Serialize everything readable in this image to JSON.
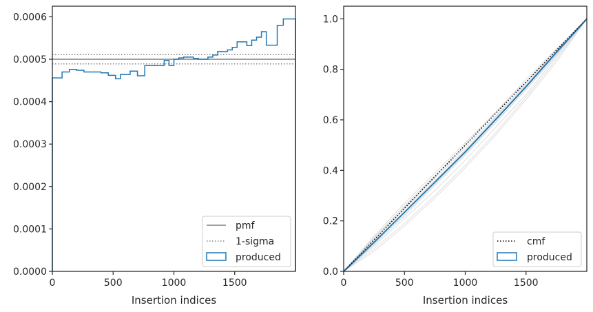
{
  "chart_data": [
    {
      "type": "step",
      "xlabel": "Insertion indices",
      "ylabel": "",
      "xlim": [
        0,
        2000
      ],
      "ylim": [
        0,
        0.000625
      ],
      "xticks": [
        0,
        500,
        1000,
        1500
      ],
      "xtick_labels": [
        "0",
        "500",
        "1000",
        "1500"
      ],
      "yticks": [
        0,
        0.0001,
        0.0002,
        0.0003,
        0.0004,
        0.0005,
        0.0006
      ],
      "ytick_labels": [
        "0.0000",
        "0.0001",
        "0.0002",
        "0.0003",
        "0.0004",
        "0.0005",
        "0.0006"
      ],
      "grid": false,
      "legend_position": "lower-right",
      "reference_lines": {
        "pmf": 0.0005,
        "sigma_upper": 0.000511,
        "sigma_lower": 0.000489
      },
      "series": [
        {
          "name": "produced",
          "color": "#1f77b4",
          "bin_edges": [
            0,
            80,
            140,
            200,
            260,
            280,
            340,
            400,
            460,
            520,
            560,
            600,
            640,
            700,
            760,
            820,
            880,
            920,
            960,
            1000,
            1040,
            1080,
            1120,
            1160,
            1200,
            1240,
            1280,
            1320,
            1360,
            1400,
            1440,
            1480,
            1520,
            1560,
            1600,
            1640,
            1680,
            1720,
            1760,
            1800,
            1850,
            1900,
            1950,
            2000
          ],
          "values": [
            0.000456,
            0.00047,
            0.000476,
            0.000474,
            0.00047,
            0.00047,
            0.00047,
            0.000468,
            0.000462,
            0.000454,
            0.000464,
            0.000464,
            0.000472,
            0.000461,
            0.000485,
            0.000485,
            0.000485,
            0.000497,
            0.000485,
            0.0005,
            0.000503,
            0.000505,
            0.000505,
            0.000502,
            0.0005,
            0.0005,
            0.000505,
            0.00051,
            0.000518,
            0.000518,
            0.000522,
            0.000528,
            0.000541,
            0.000541,
            0.000532,
            0.000545,
            0.000552,
            0.000565,
            0.000533,
            0.000533,
            0.00058,
            0.000595,
            0.000595
          ]
        }
      ],
      "legend": [
        {
          "label": "pmf",
          "style": "solid",
          "color": "#808080"
        },
        {
          "label": "1-sigma",
          "style": "dotted",
          "color": "#808080"
        },
        {
          "label": "produced",
          "style": "patch",
          "color": "#1f77b4"
        }
      ]
    },
    {
      "type": "line",
      "xlabel": "Insertion indices",
      "ylabel": "",
      "xlim": [
        0,
        2000
      ],
      "ylim": [
        0,
        1.05
      ],
      "xticks": [
        0,
        500,
        1000,
        1500
      ],
      "xtick_labels": [
        "0",
        "500",
        "1000",
        "1500"
      ],
      "yticks": [
        0,
        0.2,
        0.4,
        0.6,
        0.8,
        1.0
      ],
      "ytick_labels": [
        "0.0",
        "0.2",
        "0.4",
        "0.6",
        "0.8",
        "1.0"
      ],
      "grid": false,
      "legend_position": "lower-right",
      "series": [
        {
          "name": "cmf",
          "style": "dotted",
          "color": "#000000",
          "x": [
            0,
            2000
          ],
          "y": [
            0,
            1.0
          ]
        },
        {
          "name": "produced",
          "color": "#1f77b4",
          "x": [
            0,
            250,
            500,
            750,
            1000,
            1250,
            1500,
            1750,
            2000
          ],
          "y": [
            0,
            0.115,
            0.234,
            0.353,
            0.473,
            0.601,
            0.731,
            0.867,
            1.0
          ]
        }
      ],
      "background_curves": [
        {
          "x": [
            0,
            250,
            500,
            750,
            1000,
            1250,
            1500,
            1750,
            2000
          ],
          "y": [
            0,
            0.1,
            0.21,
            0.32,
            0.44,
            0.57,
            0.7,
            0.85,
            1.0
          ]
        },
        {
          "x": [
            0,
            250,
            500,
            750,
            1000,
            1250,
            1500,
            1750,
            2000
          ],
          "y": [
            0,
            0.13,
            0.26,
            0.38,
            0.5,
            0.63,
            0.76,
            0.88,
            1.0
          ]
        },
        {
          "x": [
            0,
            250,
            500,
            750,
            1000,
            1250,
            1500,
            1750,
            2000
          ],
          "y": [
            0,
            0.09,
            0.19,
            0.3,
            0.42,
            0.55,
            0.69,
            0.84,
            1.0
          ]
        },
        {
          "x": [
            0,
            250,
            500,
            750,
            1000,
            1250,
            1500,
            1750,
            2000
          ],
          "y": [
            0,
            0.12,
            0.25,
            0.37,
            0.48,
            0.61,
            0.74,
            0.87,
            1.0
          ]
        },
        {
          "x": [
            0,
            250,
            500,
            750,
            1000,
            1250,
            1500,
            1750,
            2000
          ],
          "y": [
            0,
            0.14,
            0.27,
            0.39,
            0.51,
            0.63,
            0.75,
            0.88,
            1.0
          ]
        },
        {
          "x": [
            0,
            250,
            500,
            750,
            1000,
            1250,
            1500,
            1750,
            2000
          ],
          "y": [
            0,
            0.11,
            0.22,
            0.34,
            0.46,
            0.59,
            0.72,
            0.86,
            1.0
          ]
        },
        {
          "x": [
            0,
            250,
            500,
            750,
            1000,
            1250,
            1500,
            1750,
            2000
          ],
          "y": [
            0,
            0.08,
            0.18,
            0.29,
            0.41,
            0.54,
            0.68,
            0.83,
            1.0
          ]
        },
        {
          "x": [
            0,
            250,
            500,
            750,
            1000,
            1250,
            1500,
            1750,
            2000
          ],
          "y": [
            0,
            0.125,
            0.245,
            0.36,
            0.475,
            0.605,
            0.735,
            0.87,
            1.0
          ]
        },
        {
          "x": [
            0,
            250,
            500,
            750,
            1000,
            1250,
            1500,
            1750,
            2000
          ],
          "y": [
            0,
            0.105,
            0.225,
            0.345,
            0.465,
            0.59,
            0.72,
            0.855,
            1.0
          ]
        },
        {
          "x": [
            0,
            250,
            500,
            750,
            1000,
            1250,
            1500,
            1750,
            2000
          ],
          "y": [
            0,
            0.135,
            0.255,
            0.375,
            0.49,
            0.615,
            0.745,
            0.875,
            1.0
          ]
        }
      ],
      "legend": [
        {
          "label": "cmf",
          "style": "dotted",
          "color": "#000000"
        },
        {
          "label": "produced",
          "style": "patch",
          "color": "#1f77b4"
        }
      ]
    }
  ]
}
